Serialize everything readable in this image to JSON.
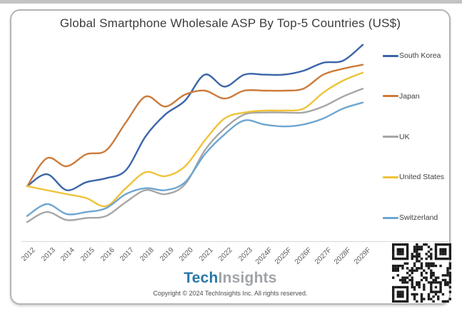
{
  "title": "Global Smartphone Wholesale ASP By Top-5 Countries (US$)",
  "footer": {
    "logo_part1": "Tech",
    "logo_part2": "Insights",
    "copyright": "Copyright © 2024 TechInsights Inc. All rights reserved."
  },
  "colors": {
    "logo_blue": "#2878a8",
    "logo_gray": "#a0a4a8",
    "axis_line": "#d8d8d8",
    "qr_dark": "#1a1a1a"
  },
  "chart_data": {
    "type": "line",
    "title": "Global Smartphone Wholesale ASP By Top-5 Countries (US$)",
    "x_categories": [
      "2012",
      "2013",
      "2014",
      "2015",
      "2016",
      "2017",
      "2018",
      "2019",
      "2020",
      "2021",
      "2022",
      "2023",
      "2024F",
      "2025F",
      "2026F",
      "2027F",
      "2028F",
      "2029F"
    ],
    "xlabel": "",
    "ylabel": "",
    "value_scale": {
      "min": 0,
      "max": 100,
      "note": "y-axis is unlabeled in the source image; values are estimated relative heights (% of plot area)"
    },
    "grid": false,
    "smooth": true,
    "legend_position": "right",
    "series": [
      {
        "name": "South Korea",
        "color": "#3b65a8",
        "values": [
          28,
          34,
          26,
          30,
          32,
          36,
          53,
          64,
          71,
          84,
          78,
          84,
          84,
          84,
          86,
          90,
          91,
          99
        ]
      },
      {
        "name": "Japan",
        "color": "#cb7b3c",
        "values": [
          28,
          42,
          38,
          44,
          46,
          60,
          73,
          68,
          74,
          76,
          72,
          76,
          76,
          76,
          77,
          84,
          87,
          89
        ]
      },
      {
        "name": "UK",
        "color": "#a6a6a6",
        "values": [
          10,
          15,
          11,
          12,
          13,
          20,
          26,
          24,
          29,
          46,
          57,
          64,
          65,
          65,
          65,
          68,
          73,
          77
        ]
      },
      {
        "name": "United States",
        "color": "#efc339",
        "values": [
          28,
          26,
          24,
          22,
          18,
          27,
          35,
          33,
          38,
          51,
          62,
          65,
          66,
          66,
          67,
          75,
          81,
          85
        ]
      },
      {
        "name": "Switzerland",
        "color": "#6ea6d0",
        "values": [
          13,
          19,
          14,
          15,
          17,
          24,
          27,
          26,
          30,
          44,
          54,
          61,
          59,
          58,
          59,
          62,
          67,
          70
        ]
      }
    ]
  }
}
